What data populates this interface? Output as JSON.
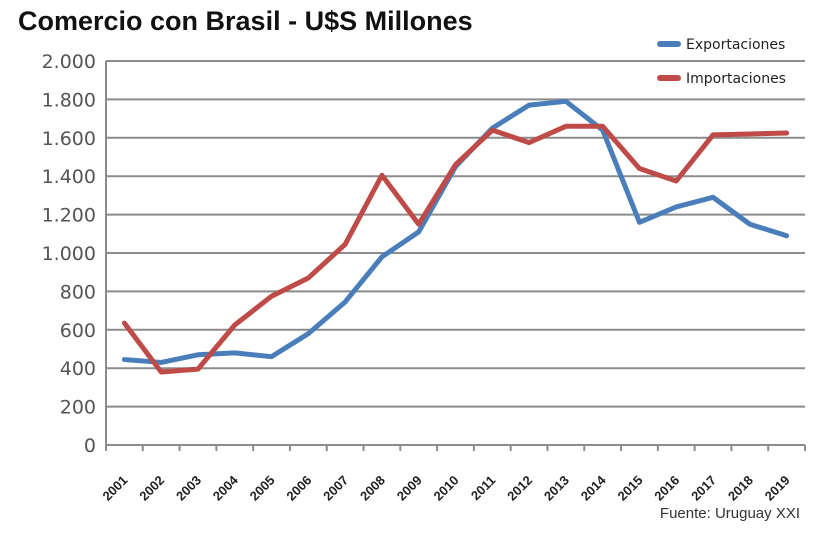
{
  "chart_data": {
    "type": "line",
    "title": "Comercio con Brasil - U$S Millones",
    "source": "Fuente: Uruguay XXI",
    "categories": [
      "2001",
      "2002",
      "2003",
      "2004",
      "2005",
      "2006",
      "2007",
      "2008",
      "2009",
      "2010",
      "2011",
      "2012",
      "2013",
      "2014",
      "2015",
      "2016",
      "2017",
      "2018",
      "2019"
    ],
    "ylim": [
      0,
      2000
    ],
    "yticks": [
      0,
      200,
      400,
      600,
      800,
      1000,
      1200,
      1400,
      1600,
      1800,
      2000
    ],
    "ytick_labels": [
      "0",
      "200",
      "400",
      "600",
      "800",
      "1.000",
      "1.200",
      "1.400",
      "1.600",
      "1.800",
      "2.000"
    ],
    "grid": true,
    "legend_position": "top-right",
    "series": [
      {
        "name": "Exportaciones",
        "color": "#4a7ebb",
        "values": [
          445,
          430,
          470,
          480,
          460,
          580,
          745,
          980,
          1110,
          1450,
          1650,
          1770,
          1790,
          1640,
          1160,
          1240,
          1290,
          1150,
          1090
        ]
      },
      {
        "name": "Importaciones",
        "color": "#be4b48",
        "values": [
          635,
          380,
          395,
          625,
          775,
          870,
          1045,
          1405,
          1150,
          1460,
          1640,
          1575,
          1660,
          1660,
          1440,
          1375,
          1615,
          1620,
          1625
        ]
      }
    ]
  }
}
